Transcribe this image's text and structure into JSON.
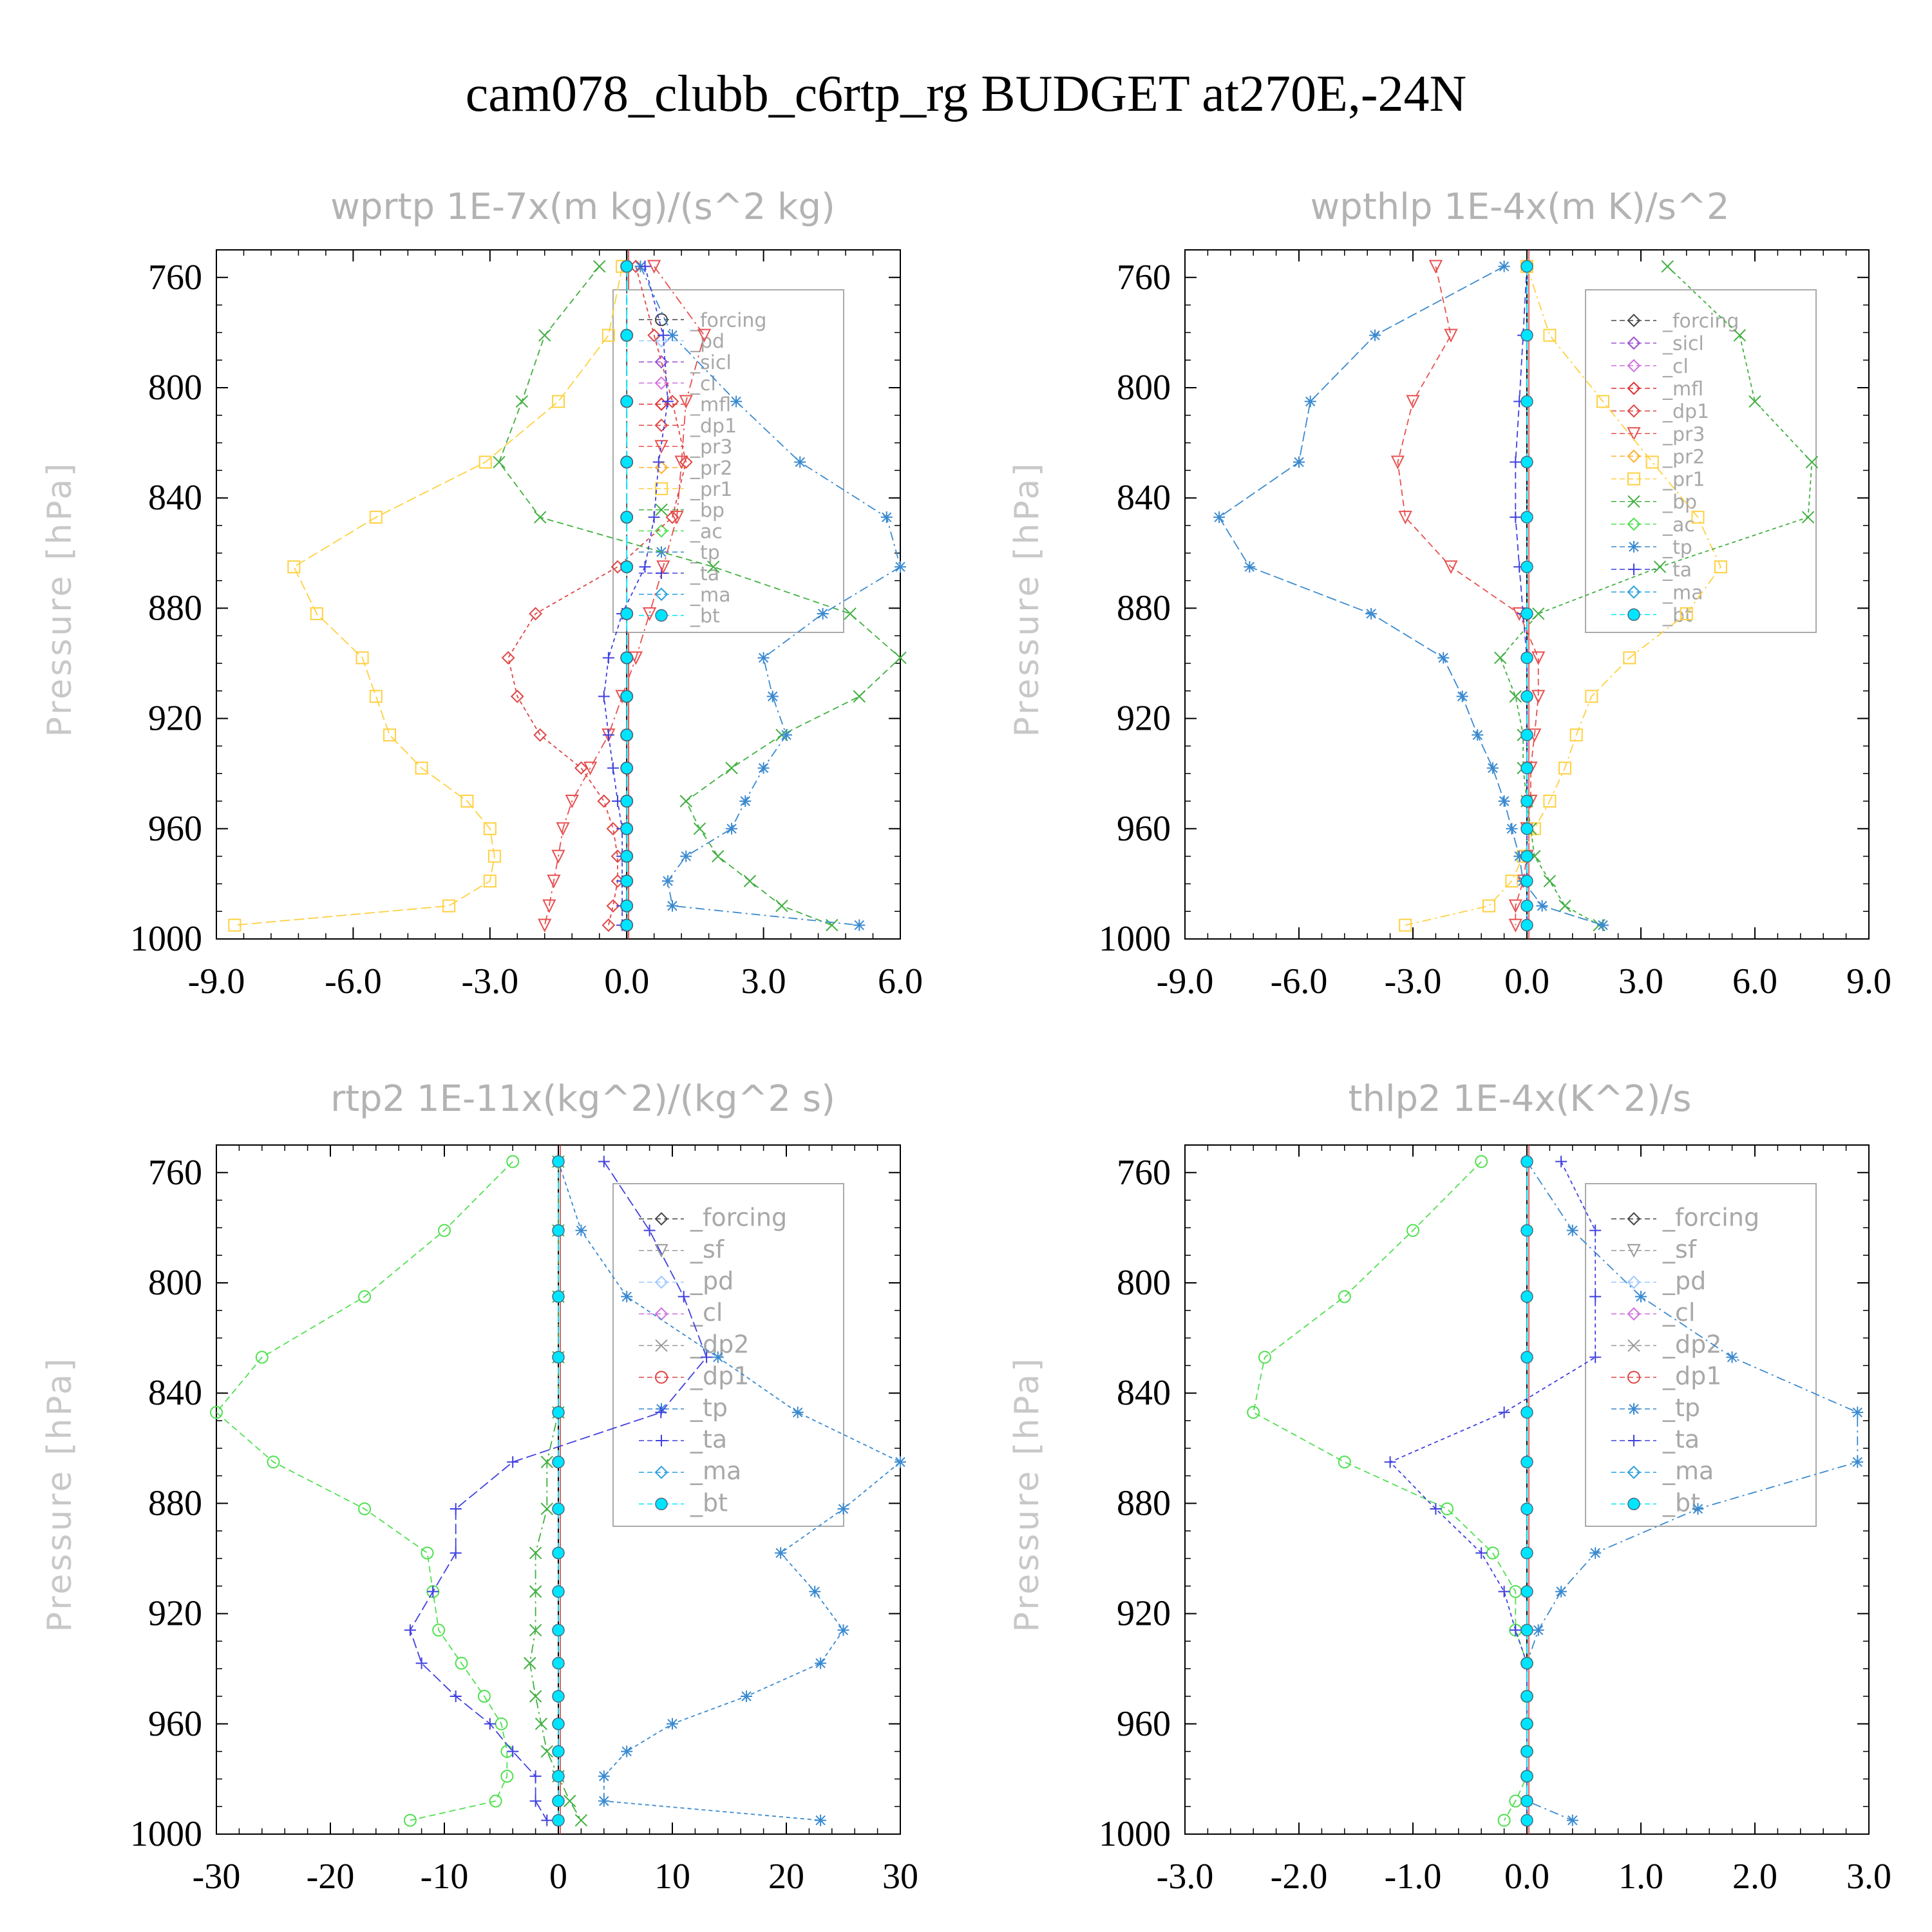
{
  "title": "cam078_clubb_c6rtp_rg  BUDGET at270E,-24N",
  "colors": {
    "forcing": "#444444",
    "pd": "#9fc9ff",
    "sicl": "#9a50d0",
    "cl": "#d070e0",
    "mfl": "#e03030",
    "dp1": "#e04545",
    "pr3": "#e85050",
    "pr2": "#ffb030",
    "pr1": "#ffd040",
    "bp": "#40b040",
    "ac": "#50e050",
    "tp": "#3a8ad0",
    "ta": "#4040e0",
    "ma": "#2aa0e0",
    "bt": "#00e5ff"
  },
  "chart_data": [
    {
      "type": "line",
      "title": "wprtp  1E-7x(m kg)/(s^2 kg)",
      "xlabel": "",
      "ylabel": "Pressure [hPa]",
      "xlim": [
        -9,
        6
      ],
      "ylim": [
        750,
        1000
      ],
      "xticks": [
        "-9.0",
        "-6.0",
        "-3.0",
        "0.0",
        "3.0",
        "6.0"
      ],
      "yticks": [
        "760",
        "800",
        "840",
        "880",
        "920",
        "960",
        "1000"
      ],
      "legend_position": "top-right",
      "legend": [
        "_forcing",
        "_pd",
        "_sicl",
        "_cl",
        "_mfl",
        "_dp1",
        "_pr3",
        "_pr2",
        "_pr1",
        "_bp",
        "_ac",
        "_tp",
        "_ta",
        "_ma",
        "_bt"
      ],
      "y": [
        756,
        781,
        805,
        827,
        847,
        865,
        882,
        898,
        912,
        926,
        938,
        950,
        960,
        970,
        979,
        988,
        995
      ],
      "series": [
        {
          "name": "_forcing",
          "marker": "circle",
          "color": "forcing",
          "values": [
            0,
            0,
            0,
            0,
            0,
            0,
            0,
            0,
            0,
            0,
            0,
            0,
            0,
            0,
            0,
            0,
            0
          ]
        },
        {
          "name": "_pr3",
          "marker": "triangle-down",
          "color": "pr3",
          "values": [
            0.6,
            1.7,
            1.3,
            1.2,
            1.1,
            0.8,
            0.5,
            0.2,
            -0.1,
            -0.4,
            -0.8,
            -1.2,
            -1.4,
            -1.5,
            -1.6,
            -1.7,
            -1.8
          ]
        },
        {
          "name": "_dp1",
          "marker": "diamond",
          "color": "dp1",
          "values": [
            0.2,
            0.6,
            1.0,
            1.3,
            1.0,
            -0.2,
            -2.0,
            -2.6,
            -2.4,
            -1.9,
            -1.0,
            -0.5,
            -0.3,
            -0.2,
            -0.2,
            -0.3,
            -0.4
          ]
        },
        {
          "name": "_pr1",
          "marker": "square",
          "color": "pr1",
          "values": [
            -0.1,
            -0.4,
            -1.5,
            -3.1,
            -5.5,
            -7.3,
            -6.8,
            -5.8,
            -5.5,
            -5.2,
            -4.5,
            -3.5,
            -3.0,
            -2.9,
            -3.0,
            -3.9,
            -8.6
          ]
        },
        {
          "name": "_bp",
          "marker": "x",
          "color": "bp",
          "values": [
            -0.6,
            -1.8,
            -2.3,
            -2.8,
            -1.9,
            1.9,
            4.9,
            6.0,
            5.1,
            3.4,
            2.3,
            1.3,
            1.6,
            2.0,
            2.7,
            3.4,
            4.5
          ]
        },
        {
          "name": "_tp",
          "marker": "asterisk",
          "color": "tp",
          "values": [
            0.3,
            1.0,
            2.4,
            3.8,
            5.7,
            6.0,
            4.3,
            3.0,
            3.2,
            3.5,
            3.0,
            2.6,
            2.3,
            1.3,
            0.9,
            1.0,
            5.1
          ]
        },
        {
          "name": "_ta",
          "marker": "plus",
          "color": "ta",
          "values": [
            0.4,
            0.8,
            0.9,
            0.7,
            0.6,
            0.4,
            -0.1,
            -0.4,
            -0.5,
            -0.4,
            -0.3,
            -0.2,
            -0.1,
            -0.1,
            -0.1,
            -0.1,
            -0.1
          ]
        },
        {
          "name": "_bt",
          "marker": "dot",
          "color": "bt",
          "values": [
            0,
            0,
            0,
            0,
            0,
            0,
            0,
            0,
            0,
            0,
            0,
            0,
            0,
            0,
            0,
            0,
            0
          ]
        }
      ]
    },
    {
      "type": "line",
      "title": "wpthlp  1E-4x(m K)/s^2",
      "xlabel": "",
      "ylabel": "Pressure [hPa]",
      "xlim": [
        -9,
        9
      ],
      "ylim": [
        750,
        1000
      ],
      "xticks": [
        "-9.0",
        "-6.0",
        "-3.0",
        "0.0",
        "3.0",
        "6.0",
        "9.0"
      ],
      "yticks": [
        "760",
        "800",
        "840",
        "880",
        "920",
        "960",
        "1000"
      ],
      "legend_position": "top-right",
      "legend": [
        "_forcing",
        "_sicl",
        "_cl",
        "_mfl",
        "_dp1",
        "_pr3",
        "_pr2",
        "_pr1",
        "_bp",
        "_ac",
        "_tp",
        "_ta",
        "_ma",
        "_bt"
      ],
      "y": [
        756,
        781,
        805,
        827,
        847,
        865,
        882,
        898,
        912,
        926,
        938,
        950,
        960,
        970,
        979,
        988,
        995
      ],
      "series": [
        {
          "name": "_pr3",
          "marker": "triangle-down",
          "color": "pr3",
          "values": [
            -2.4,
            -2.0,
            -3.0,
            -3.4,
            -3.2,
            -2.0,
            -0.2,
            0.3,
            0.3,
            0.2,
            0.1,
            0.1,
            0.0,
            0.0,
            -0.1,
            -0.3,
            -0.3
          ]
        },
        {
          "name": "_pr1",
          "marker": "square",
          "color": "pr1",
          "values": [
            0.0,
            0.6,
            2.0,
            3.3,
            4.5,
            5.1,
            4.2,
            2.7,
            1.7,
            1.3,
            1.0,
            0.6,
            0.2,
            -0.1,
            -0.4,
            -1.0,
            -3.2
          ]
        },
        {
          "name": "_bp",
          "marker": "x",
          "color": "bp",
          "values": [
            3.7,
            5.6,
            6.0,
            7.5,
            7.4,
            3.5,
            0.3,
            -0.7,
            -0.3,
            -0.1,
            -0.1,
            0.0,
            0.1,
            0.2,
            0.6,
            1.0,
            1.9
          ]
        },
        {
          "name": "_tp",
          "marker": "asterisk",
          "color": "tp",
          "values": [
            -0.6,
            -4.0,
            -5.7,
            -6.0,
            -8.1,
            -7.3,
            -4.1,
            -2.2,
            -1.7,
            -1.3,
            -0.9,
            -0.6,
            -0.4,
            -0.2,
            -0.1,
            0.4,
            2.0
          ]
        },
        {
          "name": "_ta",
          "marker": "plus",
          "color": "ta",
          "values": [
            0.0,
            -0.1,
            -0.2,
            -0.3,
            -0.3,
            -0.2,
            -0.1,
            0.0,
            0.0,
            0.0,
            0.0,
            0.0,
            0.0,
            0.0,
            0.0,
            0.0,
            0.0
          ]
        },
        {
          "name": "_bt",
          "marker": "dot",
          "color": "bt",
          "values": [
            0,
            0,
            0,
            0,
            0,
            0,
            0,
            0,
            0,
            0,
            0,
            0,
            0,
            0,
            0,
            0,
            0
          ]
        }
      ]
    },
    {
      "type": "line",
      "title": "rtp2  1E-11x(kg^2)/(kg^2 s)",
      "xlabel": "",
      "ylabel": "Pressure [hPa]",
      "xlim": [
        -30,
        30
      ],
      "ylim": [
        750,
        1000
      ],
      "xticks": [
        "-30",
        "-20",
        "-10",
        "0",
        "10",
        "20",
        "30"
      ],
      "yticks": [
        "760",
        "800",
        "840",
        "880",
        "920",
        "960",
        "1000"
      ],
      "legend_position": "top-right",
      "legend": [
        "_forcing",
        "_sf",
        "_pd",
        "_cl",
        "_dp2",
        "_dp1",
        "_tp",
        "_ta",
        "_ma",
        "_bt"
      ],
      "y": [
        756,
        781,
        805,
        827,
        847,
        865,
        882,
        898,
        912,
        926,
        938,
        950,
        960,
        970,
        979,
        988,
        995
      ],
      "series": [
        {
          "name": "_dp1",
          "marker": "circle",
          "color": "ac",
          "values": [
            -4,
            -10,
            -17,
            -26,
            -30,
            -25,
            -17,
            -11.5,
            -11,
            -10.5,
            -8.5,
            -6.5,
            -5,
            -4.5,
            -4.5,
            -5.5,
            -13
          ]
        },
        {
          "name": "_dp2",
          "marker": "x",
          "color": "bp",
          "values": [
            0,
            0,
            0,
            0,
            0,
            -1,
            -1,
            -2,
            -2,
            -2,
            -2.5,
            -2,
            -1.5,
            -1,
            0,
            1,
            2
          ]
        },
        {
          "name": "_tp",
          "marker": "asterisk",
          "color": "tp",
          "values": [
            0,
            2,
            6,
            14,
            21,
            30,
            25,
            19.5,
            22.5,
            25,
            23,
            16.5,
            10,
            6,
            4,
            4,
            23
          ]
        },
        {
          "name": "_ta",
          "marker": "plus",
          "color": "ta",
          "values": [
            4,
            8,
            11,
            13,
            9,
            -4,
            -9,
            -9,
            -11,
            -13,
            -12,
            -9,
            -6,
            -4,
            -2,
            -2,
            -1
          ]
        },
        {
          "name": "_bt",
          "marker": "dot",
          "color": "bt",
          "values": [
            0,
            0,
            0,
            0,
            0,
            0,
            0,
            0,
            0,
            0,
            0,
            0,
            0,
            0,
            0,
            0,
            0
          ]
        }
      ]
    },
    {
      "type": "line",
      "title": "thlp2  1E-4x(K^2)/s",
      "xlabel": "",
      "ylabel": "Pressure [hPa]",
      "xlim": [
        -3,
        3
      ],
      "ylim": [
        750,
        1000
      ],
      "xticks": [
        "-3.0",
        "-2.0",
        "-1.0",
        "0.0",
        "1.0",
        "2.0",
        "3.0"
      ],
      "yticks": [
        "760",
        "800",
        "840",
        "880",
        "920",
        "960",
        "1000"
      ],
      "legend_position": "top-right",
      "legend": [
        "_forcing",
        "_sf",
        "_pd",
        "_cl",
        "_dp2",
        "_dp1",
        "_tp",
        "_ta",
        "_ma",
        "_bt"
      ],
      "y": [
        756,
        781,
        805,
        827,
        847,
        865,
        882,
        898,
        912,
        926,
        938,
        950,
        960,
        970,
        979,
        988,
        995
      ],
      "series": [
        {
          "name": "_dp1",
          "marker": "circle",
          "color": "ac",
          "values": [
            -0.4,
            -1.0,
            -1.6,
            -2.3,
            -2.4,
            -1.6,
            -0.7,
            -0.3,
            -0.1,
            -0.1,
            0.0,
            0.0,
            0.0,
            0.0,
            0.0,
            -0.1,
            -0.2
          ]
        },
        {
          "name": "_tp",
          "marker": "asterisk",
          "color": "tp",
          "values": [
            0.0,
            0.4,
            1.0,
            1.8,
            2.9,
            2.9,
            1.5,
            0.6,
            0.3,
            0.1,
            0.0,
            0.0,
            0.0,
            0.0,
            0.0,
            0.0,
            0.4
          ]
        },
        {
          "name": "_ta",
          "marker": "plus",
          "color": "ta",
          "values": [
            0.3,
            0.6,
            0.6,
            0.6,
            -0.2,
            -1.2,
            -0.8,
            -0.4,
            -0.2,
            -0.1,
            0.0,
            0.0,
            0.0,
            0.0,
            0.0,
            0.0,
            0.0
          ]
        },
        {
          "name": "_bt",
          "marker": "dot",
          "color": "bt",
          "values": [
            0,
            0,
            0,
            0,
            0,
            0,
            0,
            0,
            0,
            0,
            0,
            0,
            0,
            0,
            0,
            0,
            0
          ]
        }
      ]
    }
  ]
}
